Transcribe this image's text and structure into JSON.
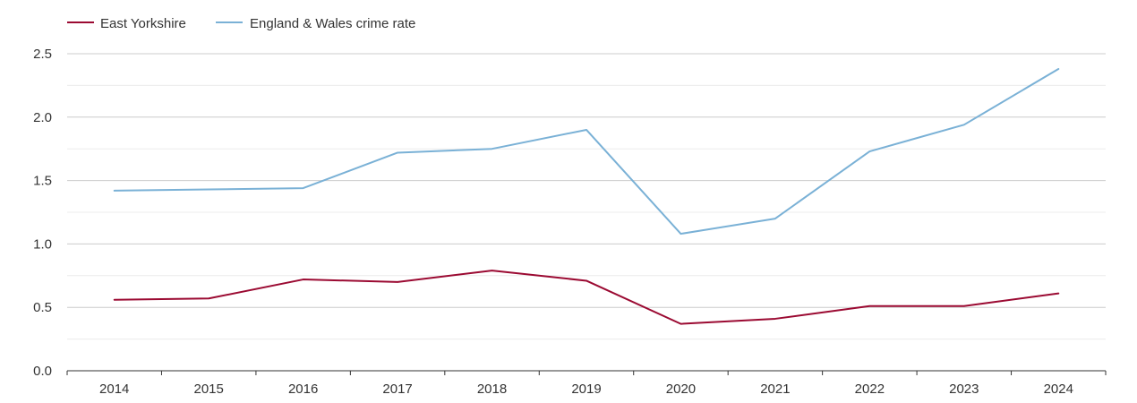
{
  "chart_data": {
    "type": "line",
    "categories": [
      "2014",
      "2015",
      "2016",
      "2017",
      "2018",
      "2019",
      "2020",
      "2021",
      "2022",
      "2023",
      "2024"
    ],
    "series": [
      {
        "name": "East Yorkshire",
        "color": "#9b0a32",
        "values": [
          0.56,
          0.57,
          0.72,
          0.7,
          0.79,
          0.71,
          0.37,
          0.41,
          0.51,
          0.51,
          0.61
        ]
      },
      {
        "name": "England & Wales crime rate",
        "color": "#7ab1d6",
        "values": [
          1.42,
          1.43,
          1.44,
          1.72,
          1.75,
          1.9,
          1.08,
          1.2,
          1.73,
          1.94,
          2.38
        ]
      }
    ],
    "ylim": [
      0,
      2.5
    ],
    "yticks": [
      "0.0",
      "0.5",
      "1.0",
      "1.5",
      "2.0",
      "2.5"
    ],
    "grid": true,
    "legend_position": "top-left"
  }
}
